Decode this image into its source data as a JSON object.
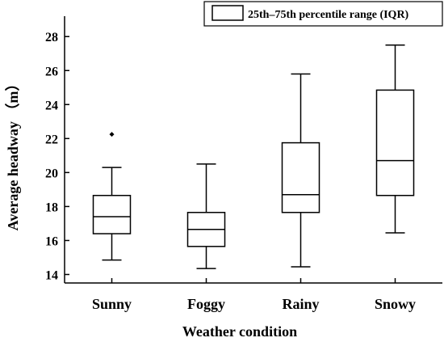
{
  "chart_data": {
    "type": "box",
    "title": "",
    "xlabel": "Weather condition",
    "ylabel": "Average headway （m）",
    "ylim": [
      13.5,
      29.2
    ],
    "yticks": [
      14,
      16,
      18,
      20,
      22,
      24,
      26,
      28
    ],
    "legend": {
      "label": "25th–75th percentile range (IQR)",
      "position": "top-right"
    },
    "categories": [
      "Sunny",
      "Foggy",
      "Rainy",
      "Snowy"
    ],
    "boxes": [
      {
        "category": "Sunny",
        "whisker_low": 14.85,
        "q1": 16.4,
        "median": 17.4,
        "q3": 18.65,
        "whisker_high": 20.3,
        "outliers": [
          22.25
        ]
      },
      {
        "category": "Foggy",
        "whisker_low": 14.35,
        "q1": 15.65,
        "median": 16.65,
        "q3": 17.65,
        "whisker_high": 20.5,
        "outliers": []
      },
      {
        "category": "Rainy",
        "whisker_low": 14.45,
        "q1": 17.65,
        "median": 18.7,
        "q3": 21.75,
        "whisker_high": 25.8,
        "outliers": []
      },
      {
        "category": "Snowy",
        "whisker_low": 16.45,
        "q1": 18.65,
        "median": 20.7,
        "q3": 24.85,
        "whisker_high": 27.5,
        "outliers": []
      }
    ],
    "grid": false
  }
}
